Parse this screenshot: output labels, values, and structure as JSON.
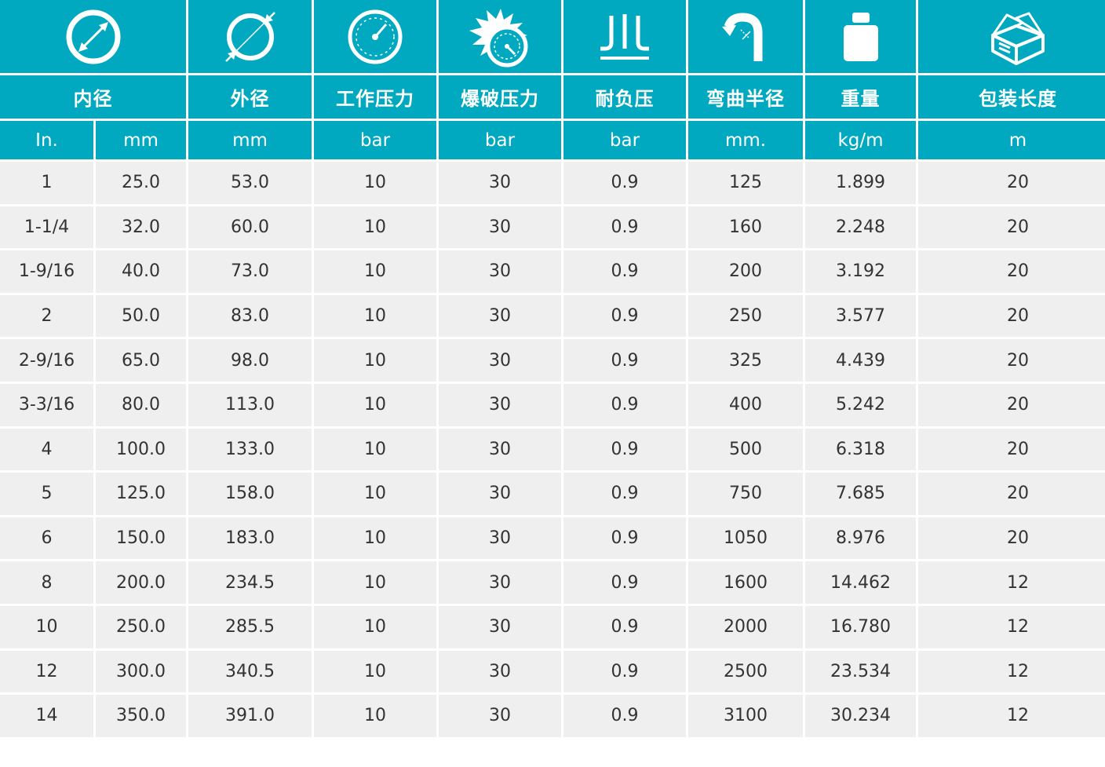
{
  "table": {
    "icons": [
      {
        "name": "inner-diameter-icon",
        "span": 2
      },
      {
        "name": "outer-diameter-icon",
        "span": 1
      },
      {
        "name": "pressure-gauge-icon",
        "span": 1
      },
      {
        "name": "burst-gauge-icon",
        "span": 1
      },
      {
        "name": "vacuum-icon",
        "span": 1
      },
      {
        "name": "bend-radius-icon",
        "span": 1
      },
      {
        "name": "weight-icon",
        "span": 1
      },
      {
        "name": "package-box-icon",
        "span": 1
      }
    ],
    "headers": [
      {
        "label": "内径",
        "span": 2
      },
      {
        "label": "外径",
        "span": 1
      },
      {
        "label": "工作压力",
        "span": 1
      },
      {
        "label": "爆破压力",
        "span": 1
      },
      {
        "label": "耐负压",
        "span": 1
      },
      {
        "label": "弯曲半径",
        "span": 1
      },
      {
        "label": "重量",
        "span": 1
      },
      {
        "label": "包装长度",
        "span": 1
      }
    ],
    "units": [
      "In.",
      "mm",
      "mm",
      "bar",
      "bar",
      "bar",
      "mm.",
      "kg/m",
      "m"
    ],
    "rows": [
      [
        "1",
        "25.0",
        "53.0",
        "10",
        "30",
        "0.9",
        "125",
        "1.899",
        "20"
      ],
      [
        "1-1/4",
        "32.0",
        "60.0",
        "10",
        "30",
        "0.9",
        "160",
        "2.248",
        "20"
      ],
      [
        "1-9/16",
        "40.0",
        "73.0",
        "10",
        "30",
        "0.9",
        "200",
        "3.192",
        "20"
      ],
      [
        "2",
        "50.0",
        "83.0",
        "10",
        "30",
        "0.9",
        "250",
        "3.577",
        "20"
      ],
      [
        "2-9/16",
        "65.0",
        "98.0",
        "10",
        "30",
        "0.9",
        "325",
        "4.439",
        "20"
      ],
      [
        "3-3/16",
        "80.0",
        "113.0",
        "10",
        "30",
        "0.9",
        "400",
        "5.242",
        "20"
      ],
      [
        "4",
        "100.0",
        "133.0",
        "10",
        "30",
        "0.9",
        "500",
        "6.318",
        "20"
      ],
      [
        "5",
        "125.0",
        "158.0",
        "10",
        "30",
        "0.9",
        "750",
        "7.685",
        "20"
      ],
      [
        "6",
        "150.0",
        "183.0",
        "10",
        "30",
        "0.9",
        "1050",
        "8.976",
        "20"
      ],
      [
        "8",
        "200.0",
        "234.5",
        "10",
        "30",
        "0.9",
        "1600",
        "14.462",
        "12"
      ],
      [
        "10",
        "250.0",
        "285.5",
        "10",
        "30",
        "0.9",
        "2000",
        "16.780",
        "12"
      ],
      [
        "12",
        "300.0",
        "340.5",
        "10",
        "30",
        "0.9",
        "2500",
        "23.534",
        "12"
      ],
      [
        "14",
        "350.0",
        "391.0",
        "10",
        "30",
        "0.9",
        "3100",
        "30.234",
        "12"
      ]
    ]
  },
  "colors": {
    "header_bg": "#00a9bf",
    "header_text": "#ffffff",
    "row_bg": "#efefef",
    "row_text": "#333333"
  }
}
